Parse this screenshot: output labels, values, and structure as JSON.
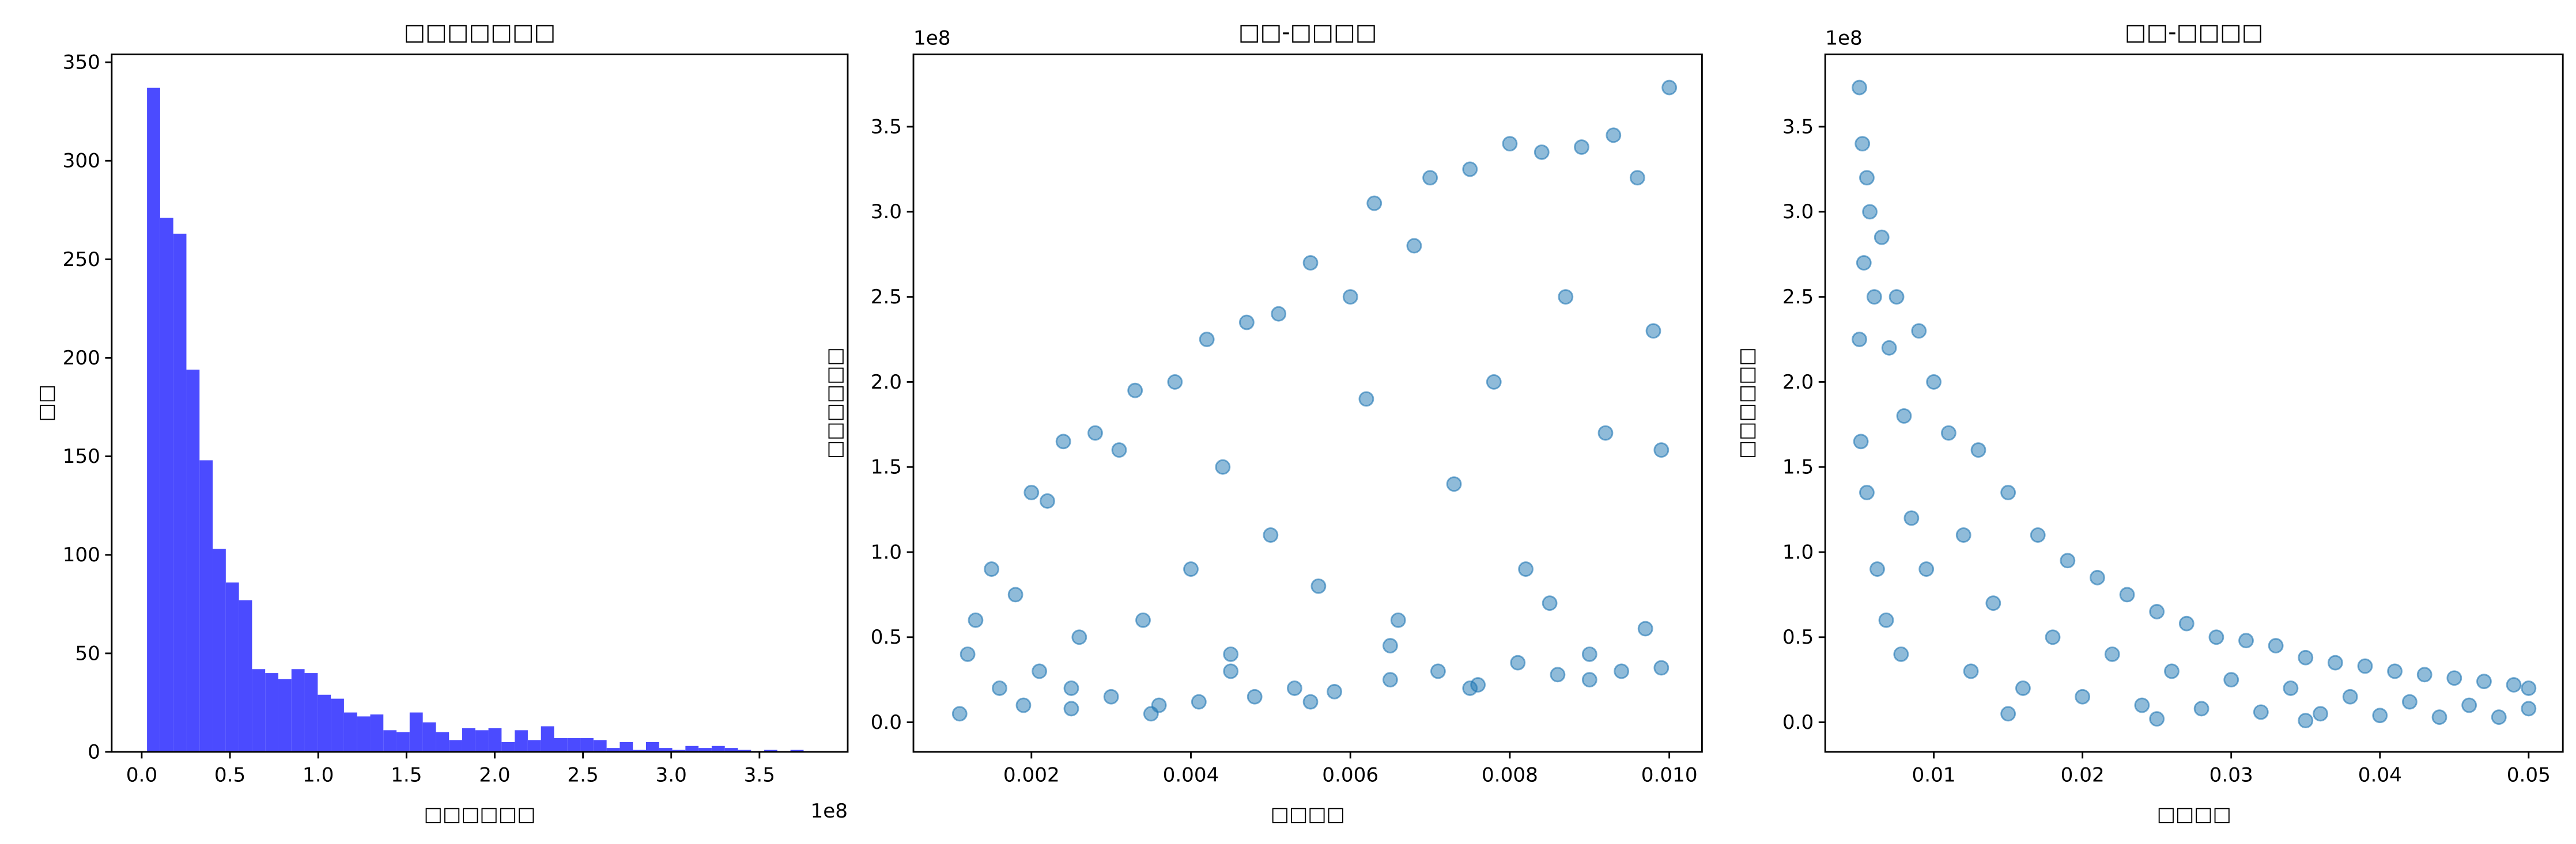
{
  "chart_data": [
    {
      "type": "histogram",
      "title": "□□□□□□□",
      "xlabel": "□□□□□□",
      "ylabel": "□□",
      "x_offset_label": "1e8",
      "color": "#4b4bff",
      "bins": [
        0.03,
        0.1044,
        0.1788,
        0.2532,
        0.3276,
        0.402,
        0.4764,
        0.5508,
        0.6252,
        0.6996,
        0.774,
        0.8484,
        0.9228,
        0.9972,
        1.0716,
        1.146,
        1.2204,
        1.2948,
        1.3692,
        1.4436,
        1.518,
        1.5924,
        1.6668,
        1.7412,
        1.8156,
        1.89,
        1.9644,
        2.0388,
        2.1132,
        2.1876,
        2.262,
        2.3364,
        2.4108,
        2.4852,
        2.5596,
        2.634,
        2.7084,
        2.7828,
        2.8572,
        2.9316,
        3.006,
        3.0804,
        3.1548,
        3.2292,
        3.3036,
        3.378,
        3.4524,
        3.5268,
        3.6012,
        3.6756,
        3.75
      ],
      "values": [
        337,
        271,
        263,
        194,
        148,
        103,
        86,
        77,
        42,
        40,
        37,
        42,
        40,
        29,
        27,
        20,
        18,
        19,
        11,
        10,
        20,
        15,
        10,
        6,
        12,
        11,
        12,
        5,
        11,
        6,
        13,
        7,
        7,
        7,
        6,
        2,
        5,
        1,
        5,
        2,
        1,
        3,
        2,
        3,
        2,
        1,
        0,
        1,
        0,
        1
      ],
      "xlim": [
        -0.17,
        4.0
      ],
      "ylim": [
        0,
        354
      ],
      "xticks": [
        {
          "value": 0,
          "label": "0.0"
        },
        0.5,
        {
          "value": 1,
          "label": "1.0"
        },
        1.5,
        {
          "value": 2,
          "label": "2.0"
        },
        2.5,
        {
          "value": 3,
          "label": "3.0"
        },
        3.5
      ],
      "yticks": [
        0,
        50,
        100,
        150,
        200,
        250,
        300,
        350
      ]
    },
    {
      "type": "scatter",
      "title": "□□-□□□□",
      "xlabel": "□□□□",
      "ylabel": "□□□□□□",
      "y_offset_label": "1e8",
      "color": "#1f77b4",
      "x": [
        0.0011,
        0.0012,
        0.0013,
        0.0015,
        0.0016,
        0.0018,
        0.0019,
        0.002,
        0.0021,
        0.0022,
        0.0024,
        0.0025,
        0.0026,
        0.0028,
        0.003,
        0.0031,
        0.0033,
        0.0034,
        0.0036,
        0.0038,
        0.004,
        0.0041,
        0.0042,
        0.0044,
        0.0045,
        0.0047,
        0.0048,
        0.005,
        0.0051,
        0.0053,
        0.0055,
        0.0056,
        0.0058,
        0.006,
        0.0062,
        0.0063,
        0.0065,
        0.0066,
        0.0068,
        0.007,
        0.0071,
        0.0073,
        0.0075,
        0.0076,
        0.0078,
        0.008,
        0.0081,
        0.0082,
        0.0084,
        0.0086,
        0.0087,
        0.0089,
        0.009,
        0.0092,
        0.0093,
        0.0094,
        0.0096,
        0.0097,
        0.0098,
        0.0099,
        0.01,
        0.0099,
        0.0035,
        0.0055,
        0.0075,
        0.009,
        0.0045,
        0.0065,
        0.0085,
        0.0025
      ],
      "y": [
        0.05,
        0.4,
        0.6,
        0.9,
        0.2,
        0.75,
        0.1,
        1.35,
        0.3,
        1.3,
        1.65,
        0.08,
        0.5,
        1.7,
        0.15,
        1.6,
        1.95,
        0.6,
        0.1,
        2.0,
        0.9,
        0.12,
        2.25,
        1.5,
        0.4,
        2.35,
        0.15,
        1.1,
        2.4,
        0.2,
        2.7,
        0.8,
        0.18,
        2.5,
        1.9,
        3.05,
        0.25,
        0.6,
        2.8,
        3.2,
        0.3,
        1.4,
        3.25,
        0.22,
        2.0,
        3.4,
        0.35,
        0.9,
        3.35,
        0.28,
        2.5,
        3.38,
        0.4,
        1.7,
        3.45,
        0.3,
        3.2,
        0.55,
        2.3,
        0.32,
        3.73,
        1.6,
        0.05,
        0.12,
        0.2,
        0.25,
        0.3,
        0.45,
        0.7,
        0.2
      ],
      "xlim": [
        0.00052,
        0.01041
      ],
      "ylim": [
        -0.174,
        3.925
      ],
      "xticks": [
        0.002,
        0.004,
        0.006,
        0.008,
        {
          "value": 0.01,
          "label": "0.010"
        }
      ],
      "yticks": [
        {
          "value": 0,
          "label": "0.0"
        },
        0.5,
        {
          "value": 1,
          "label": "1.0"
        },
        1.5,
        {
          "value": 2,
          "label": "2.0"
        },
        2.5,
        {
          "value": 3,
          "label": "3.0"
        },
        3.5
      ]
    },
    {
      "type": "scatter",
      "title": "□□-□□□□",
      "xlabel": "□□□□",
      "ylabel": "□□□□□□",
      "y_offset_label": "1e8",
      "color": "#1f77b4",
      "x": [
        0.005,
        0.0052,
        0.0055,
        0.0053,
        0.0057,
        0.005,
        0.006,
        0.0051,
        0.0055,
        0.0065,
        0.007,
        0.0062,
        0.0075,
        0.008,
        0.0068,
        0.009,
        0.0085,
        0.0078,
        0.01,
        0.0095,
        0.011,
        0.012,
        0.0125,
        0.013,
        0.014,
        0.015,
        0.016,
        0.017,
        0.018,
        0.019,
        0.02,
        0.021,
        0.022,
        0.023,
        0.024,
        0.025,
        0.026,
        0.027,
        0.028,
        0.029,
        0.03,
        0.031,
        0.032,
        0.033,
        0.034,
        0.035,
        0.036,
        0.037,
        0.038,
        0.039,
        0.04,
        0.041,
        0.042,
        0.043,
        0.044,
        0.045,
        0.046,
        0.047,
        0.048,
        0.049,
        0.05,
        0.05,
        0.015,
        0.025,
        0.035
      ],
      "y": [
        3.73,
        3.4,
        3.2,
        2.7,
        3.0,
        2.25,
        2.5,
        1.65,
        1.35,
        2.85,
        2.2,
        0.9,
        2.5,
        1.8,
        0.6,
        2.3,
        1.2,
        0.4,
        2.0,
        0.9,
        1.7,
        1.1,
        0.3,
        1.6,
        0.7,
        1.35,
        0.2,
        1.1,
        0.5,
        0.95,
        0.15,
        0.85,
        0.4,
        0.75,
        0.1,
        0.65,
        0.3,
        0.58,
        0.08,
        0.5,
        0.25,
        0.48,
        0.06,
        0.45,
        0.2,
        0.38,
        0.05,
        0.35,
        0.15,
        0.33,
        0.04,
        0.3,
        0.12,
        0.28,
        0.03,
        0.26,
        0.1,
        0.24,
        0.03,
        0.22,
        0.08,
        0.2,
        0.05,
        0.02,
        0.01
      ],
      "xlim": [
        0.0027,
        0.0523
      ],
      "ylim": [
        -0.174,
        3.925
      ],
      "xticks": [
        0.01,
        0.02,
        0.03,
        0.04,
        0.05
      ],
      "yticks": [
        {
          "value": 0,
          "label": "0.0"
        },
        0.5,
        {
          "value": 1,
          "label": "1.0"
        },
        1.5,
        {
          "value": 2,
          "label": "2.0"
        },
        2.5,
        {
          "value": 3,
          "label": "3.0"
        },
        3.5
      ]
    }
  ]
}
